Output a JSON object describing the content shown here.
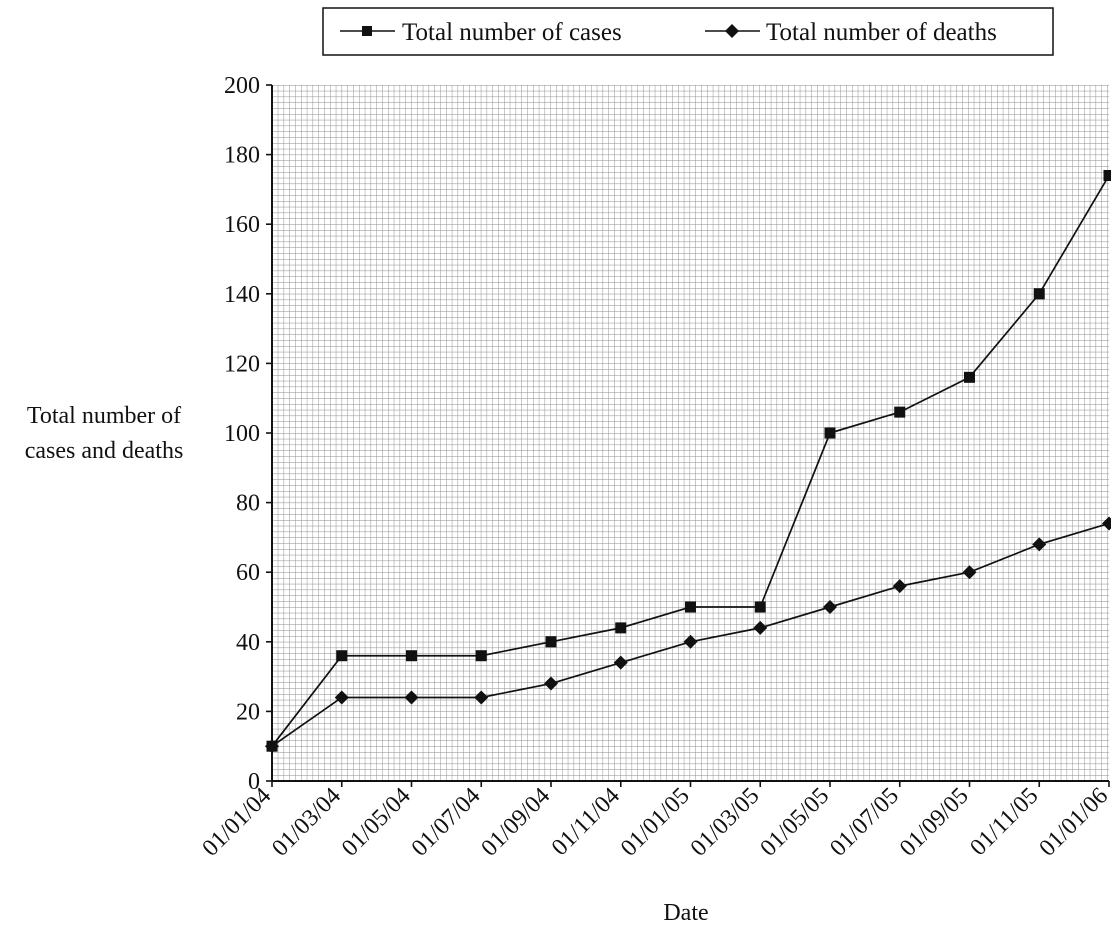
{
  "chart_data": {
    "type": "line",
    "title": "",
    "xlabel": "Date",
    "ylabel_lines": [
      "Total number of",
      "cases and deaths"
    ],
    "categories": [
      "01/01/04",
      "01/03/04",
      "01/05/04",
      "01/07/04",
      "01/09/04",
      "01/11/04",
      "01/01/05",
      "01/03/05",
      "01/05/05",
      "01/07/05",
      "01/09/05",
      "01/11/05",
      "01/01/06"
    ],
    "ylim": [
      0,
      200
    ],
    "yticks": [
      0,
      20,
      40,
      60,
      80,
      100,
      120,
      140,
      160,
      180,
      200
    ],
    "grid": true,
    "legend_position": "top",
    "series": [
      {
        "name": "Total number of cases",
        "marker": "square",
        "values": [
          10,
          36,
          36,
          36,
          40,
          44,
          50,
          50,
          100,
          106,
          116,
          140,
          174
        ]
      },
      {
        "name": "Total number of deaths",
        "marker": "diamond",
        "values": [
          10,
          24,
          24,
          24,
          28,
          34,
          40,
          44,
          50,
          56,
          60,
          68,
          74
        ]
      }
    ]
  }
}
